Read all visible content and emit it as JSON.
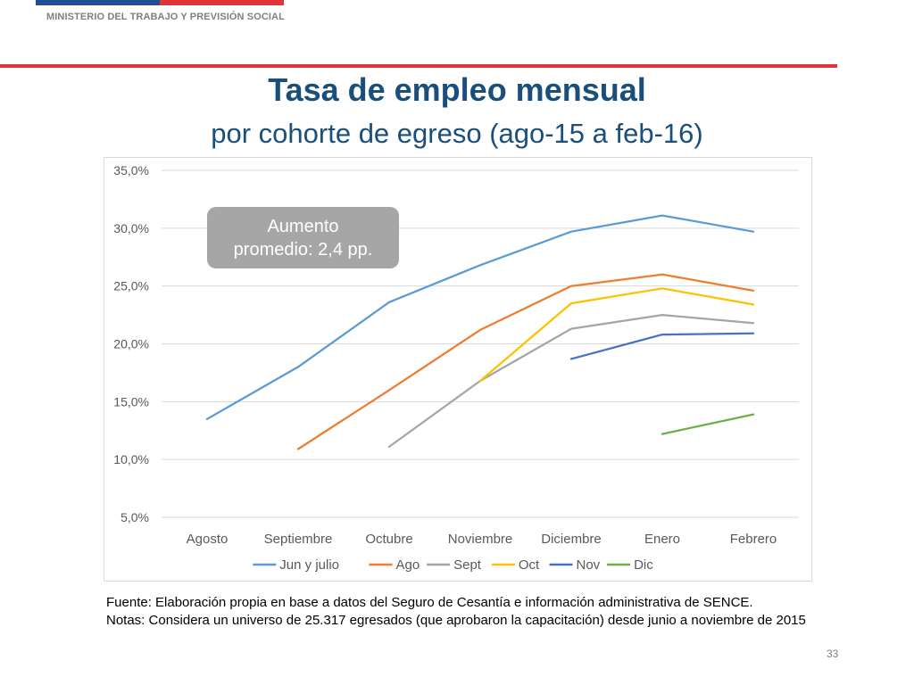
{
  "header": {
    "ministry": "MINISTERIO DEL TRABAJO Y PREVISIÓN SOCIAL",
    "stripe_colors": [
      "#1f4e96",
      "#e0343b"
    ]
  },
  "slide": {
    "title": "Tasa de empleo mensual",
    "subtitle": "por cohorte de egreso (ago-15 a feb-16)",
    "annotation_line1": "Aumento",
    "annotation_line2": "promedio: 2,4 pp.",
    "source_note": "Fuente: Elaboración propia en base a datos del Seguro de Cesantía e información administrativa de SENCE.",
    "notes_text": "Notas: Considera un universo de 25.317 egresados (que aprobaron la capacitación) desde junio a noviembre de 2015",
    "page_number": "33"
  },
  "chart_data": {
    "type": "line",
    "categories": [
      "Agosto",
      "Septiembre",
      "Octubre",
      "Noviembre",
      "Diciembre",
      "Enero",
      "Febrero"
    ],
    "ylim": [
      5,
      35
    ],
    "yticks": [
      5,
      10,
      15,
      20,
      25,
      30,
      35
    ],
    "ytick_labels": [
      "5,0%",
      "10,0%",
      "15,0%",
      "20,0%",
      "25,0%",
      "30,0%",
      "35,0%"
    ],
    "grid": true,
    "legend_position": "bottom",
    "series": [
      {
        "name": "Jun y julio",
        "color": "#5b9bd5",
        "values": [
          13.5,
          18.0,
          23.6,
          26.8,
          29.7,
          31.1,
          29.7
        ]
      },
      {
        "name": "Ago",
        "color": "#ed7d31",
        "values": [
          null,
          10.9,
          16.0,
          21.2,
          25.0,
          26.0,
          24.6
        ]
      },
      {
        "name": "Sept",
        "color": "#a5a5a5",
        "values": [
          null,
          null,
          11.1,
          16.8,
          21.3,
          22.5,
          21.8
        ]
      },
      {
        "name": "Oct",
        "color": "#ffc000",
        "values": [
          null,
          null,
          null,
          16.8,
          23.5,
          24.8,
          23.4
        ]
      },
      {
        "name": "Nov",
        "color": "#4472c4",
        "values": [
          null,
          null,
          null,
          null,
          18.7,
          20.8,
          20.9
        ]
      },
      {
        "name": "Dic",
        "color": "#70ad47",
        "values": [
          null,
          null,
          null,
          null,
          null,
          12.2,
          13.9
        ]
      }
    ]
  }
}
